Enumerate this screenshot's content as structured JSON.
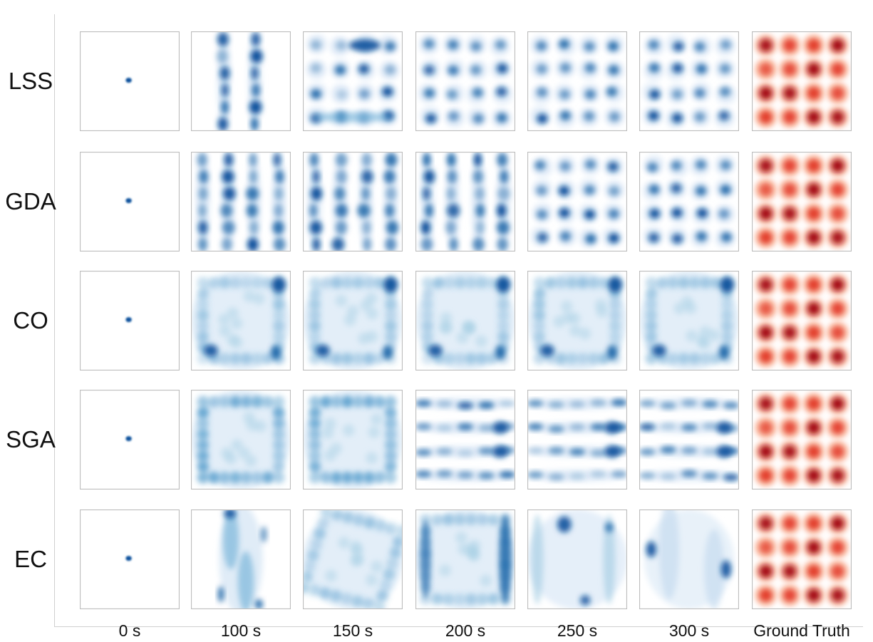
{
  "chart_data": {
    "type": "heatmap",
    "description_note": "",
    "rows": [
      "LSS",
      "GDA",
      "CO",
      "SGA",
      "EC"
    ],
    "columns": [
      "0 s",
      "100 s",
      "150 s",
      "200 s",
      "250 s",
      "300 s",
      "Ground Truth"
    ],
    "grid_modes": 16,
    "xlabel": "",
    "ylabel": "",
    "colormaps": {
      "generated": "Blues",
      "ground_truth": "Reds"
    },
    "colors": {
      "blue_dark": "#08519c",
      "blue_light": "#deebf7",
      "red_dark": "#a50f15",
      "red_light": "#fcbba1",
      "frame": "#bdbdbd"
    },
    "panels": [
      [
        {
          "pattern": "point"
        },
        {
          "pattern": "vertical-bands",
          "bands": [
            0.33,
            0.64
          ]
        },
        {
          "pattern": "partial-grid"
        },
        {
          "pattern": "grid"
        },
        {
          "pattern": "grid"
        },
        {
          "pattern": "grid"
        },
        {
          "pattern": "ground-truth"
        }
      ],
      [
        {
          "pattern": "point"
        },
        {
          "pattern": "vertical-bands",
          "bands": [
            0.12,
            0.37,
            0.63,
            0.88
          ]
        },
        {
          "pattern": "vertical-bands",
          "bands": [
            0.12,
            0.37,
            0.63,
            0.88
          ]
        },
        {
          "pattern": "vertical-bands",
          "bands": [
            0.12,
            0.37,
            0.63,
            0.88
          ]
        },
        {
          "pattern": "grid"
        },
        {
          "pattern": "grid"
        },
        {
          "pattern": "ground-truth"
        }
      ],
      [
        {
          "pattern": "point"
        },
        {
          "pattern": "square-ring"
        },
        {
          "pattern": "square-ring"
        },
        {
          "pattern": "square-ring"
        },
        {
          "pattern": "square-ring"
        },
        {
          "pattern": "square-ring"
        },
        {
          "pattern": "ground-truth"
        }
      ],
      [
        {
          "pattern": "point"
        },
        {
          "pattern": "dense-ring"
        },
        {
          "pattern": "dense-ring"
        },
        {
          "pattern": "horizontal-bands"
        },
        {
          "pattern": "horizontal-bands"
        },
        {
          "pattern": "horizontal-bands"
        },
        {
          "pattern": "ground-truth"
        }
      ],
      [
        {
          "pattern": "point"
        },
        {
          "pattern": "thin-column"
        },
        {
          "pattern": "diamond-ring"
        },
        {
          "pattern": "rect-ring"
        },
        {
          "pattern": "sparse-blobs"
        },
        {
          "pattern": "sparse-blobs-2"
        },
        {
          "pattern": "ground-truth"
        }
      ]
    ]
  }
}
